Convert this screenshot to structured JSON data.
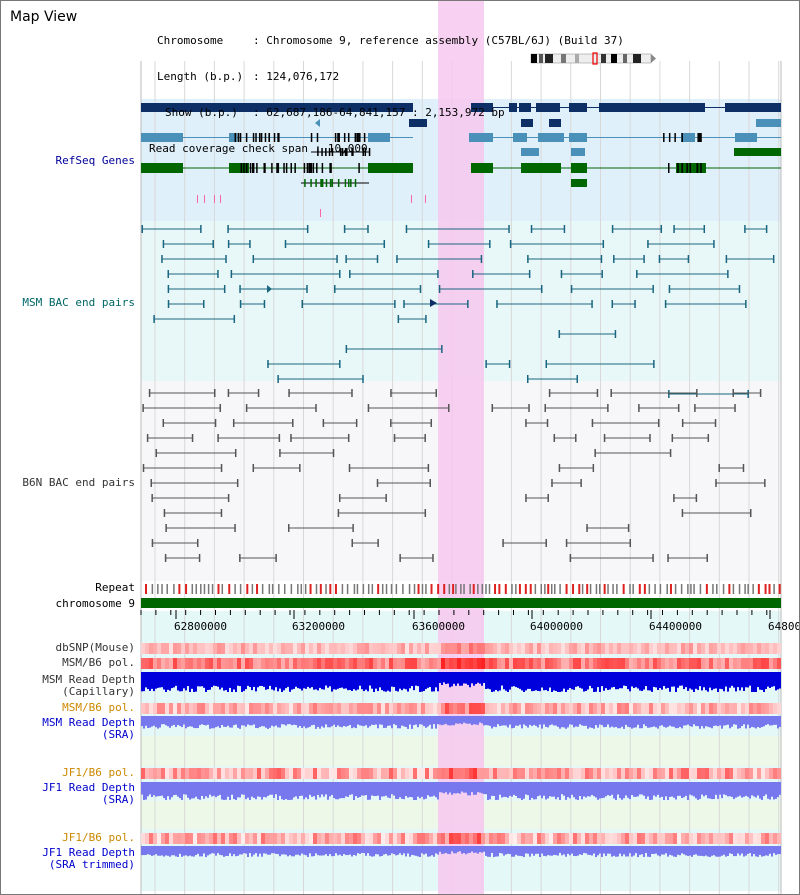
{
  "page": {
    "title": "Map View"
  },
  "info": {
    "chromosome_key": "Chromosome",
    "chromosome_val": "Chromosome 9, reference assembly (C57BL/6J) (Build 37)",
    "length_key": "Length (b.p.)",
    "length_val": "124,076,172",
    "show_key": "Show (b.p.)",
    "show_val": "62,687,186-64,841,157 : 2,153,972 bp",
    "coverage_key": "Read coverage check span",
    "coverage_val": "10,000"
  },
  "tracks": {
    "refseq": "RefSeq Genes",
    "msm_bac": "MSM BAC end pairs",
    "b6n_bac": "B6N BAC end pairs",
    "repeat": "Repeat",
    "chromosome": "chromosome 9",
    "dbsnp": "dbSNP(Mouse)",
    "msm_pol": "MSM/B6 pol.",
    "msm_depth_cap_1": "MSM Read Depth",
    "msm_depth_cap_2": "(Capillary)",
    "msm_pol2": "MSM/B6 pol.",
    "msm_depth_sra_1": "MSM Read Depth",
    "msm_depth_sra_2": "(SRA)",
    "jf1_pol": "JF1/B6 pol.",
    "jf1_depth_sra_1": "JF1 Read Depth",
    "jf1_depth_sra_2": "(SRA)",
    "jf1_pol2": "JF1/B6 pol.",
    "jf1_depth_trim_1": "JF1 Read Depth",
    "jf1_depth_trim_2": "(SRA trimmed)"
  },
  "axis": {
    "ticks": [
      "62800000",
      "63200000",
      "63600000",
      "64000000",
      "64400000",
      "64800"
    ]
  },
  "colors": {
    "refseq_label": "#000099",
    "msm_label": "#006666",
    "b6n_label": "#333333",
    "pol_orange": "#cc8800",
    "highlight": "#f7c8ef",
    "gene_dark": "#0d2f66",
    "gene_mid": "#4a90b8",
    "gene_green": "#006600",
    "bac_teal": "#1a6680",
    "bac_gray": "#555555"
  }
}
